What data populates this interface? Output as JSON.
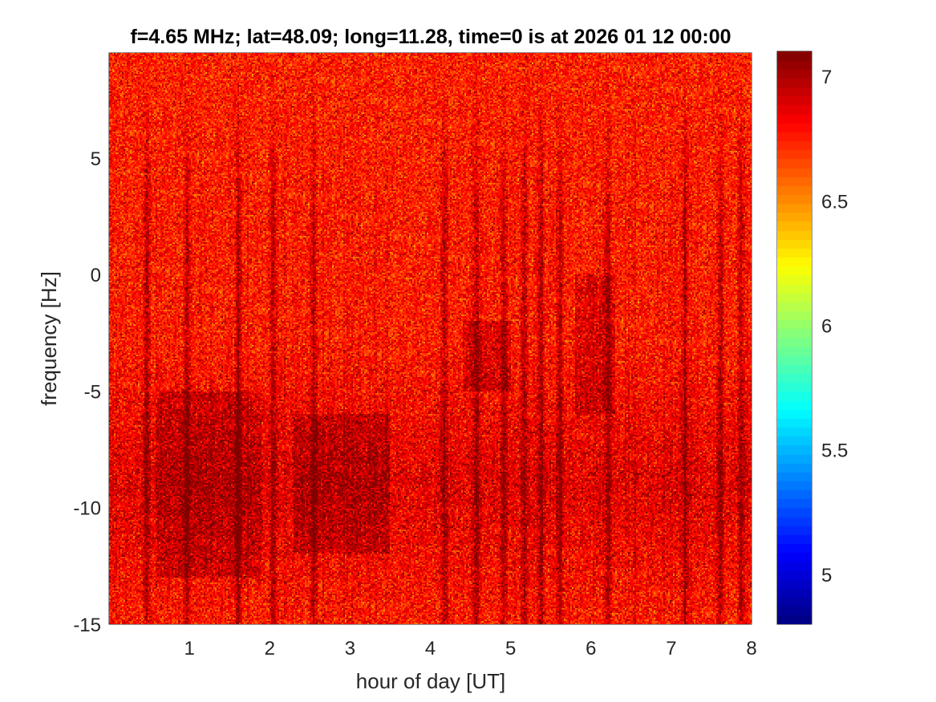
{
  "chart_data": {
    "type": "heatmap",
    "title": "f=4.65 MHz;  lat=48.09; long=11.28, time=0 is at 2026 01 12 00:00",
    "xlabel": "hour of day [UT]",
    "ylabel": "frequency [Hz]",
    "xlim": [
      0,
      8
    ],
    "ylim": [
      -15,
      9.5
    ],
    "x_ticks": [
      1,
      2,
      3,
      4,
      5,
      6,
      7,
      8
    ],
    "x_tick_labels": [
      "1",
      "2",
      "3",
      "4",
      "5",
      "6",
      "7",
      "8"
    ],
    "y_ticks": [
      -15,
      -10,
      -5,
      0,
      5
    ],
    "y_tick_labels": [
      "-15",
      "-10",
      "-5",
      "0",
      "5"
    ],
    "colorbar": {
      "colormap": "jet",
      "clim": [
        4.8,
        7.1
      ],
      "ticks": [
        5,
        5.5,
        6,
        6.5,
        7
      ],
      "tick_labels": [
        "5",
        "5.5",
        "6",
        "6.5",
        "7"
      ]
    },
    "background_level": 6.75,
    "signal_level": 7.05,
    "dark_vertical_streaks_hours": [
      0.45,
      0.95,
      1.6,
      2.05,
      2.55,
      4.15,
      4.55,
      4.9,
      5.15,
      5.35,
      5.6,
      6.2,
      7.15,
      7.6,
      7.85
    ],
    "enhanced_band_frequency_range_hz": [
      -13,
      -5
    ],
    "enhanced_regions": [
      {
        "x_range": [
          0.6,
          1.9
        ],
        "y_range": [
          -13,
          -5
        ]
      },
      {
        "x_range": [
          2.3,
          3.5
        ],
        "y_range": [
          -12,
          -6
        ]
      },
      {
        "x_range": [
          4.4,
          5.0
        ],
        "y_range": [
          -5,
          -2
        ]
      },
      {
        "x_range": [
          5.8,
          6.3
        ],
        "y_range": [
          -6,
          0
        ]
      }
    ],
    "grid": false,
    "legend": "none"
  },
  "colors": {
    "axis": "#262626",
    "background": "#ffffff"
  }
}
